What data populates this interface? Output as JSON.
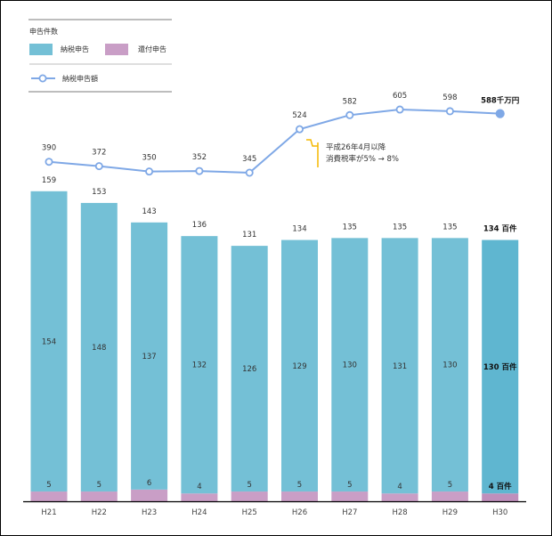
{
  "chart_data": {
    "type": "bar",
    "title": "",
    "xlabel": "",
    "ylabel": "",
    "categories": [
      "H21",
      "H22",
      "H23",
      "H24",
      "H25",
      "H26",
      "H27",
      "H28",
      "H29",
      "H30"
    ],
    "series": [
      {
        "name": "納税申告",
        "kind": "stacked-bar",
        "color": "#74c0d6",
        "highlight_color": "#5fb6d0",
        "values": [
          154,
          148,
          137,
          132,
          126,
          129,
          130,
          131,
          130,
          130
        ]
      },
      {
        "name": "還付申告",
        "kind": "stacked-bar",
        "color": "#c99ec6",
        "highlight_color": "#bf8fbc",
        "values": [
          5,
          5,
          6,
          4,
          5,
          5,
          5,
          4,
          5,
          4
        ]
      },
      {
        "name": "納税申告額",
        "kind": "line",
        "color": "#7fa8e6",
        "values": [
          390,
          372,
          350,
          352,
          345,
          524,
          582,
          605,
          598,
          588
        ]
      }
    ],
    "bar_totals": [
      159,
      153,
      143,
      136,
      131,
      134,
      135,
      135,
      135,
      134
    ],
    "last_labels": {
      "total": "134 百件",
      "tax": "130 百件",
      "refund": "4 百件",
      "amount": "588千万円"
    },
    "legend": {
      "group_title": "申告件数",
      "bar_items": [
        "納税申告",
        "還付申告"
      ],
      "line_items": [
        "納税申告額"
      ],
      "placement": "top-left"
    },
    "annotation": {
      "category": "H26",
      "lines": [
        "平成26年4月以降",
        "消費税率が5% → 8%"
      ],
      "color": "#f5b800"
    },
    "ylim_bars": [
      0,
      160
    ],
    "ylim_line": [
      345,
      605
    ],
    "grid": false
  }
}
